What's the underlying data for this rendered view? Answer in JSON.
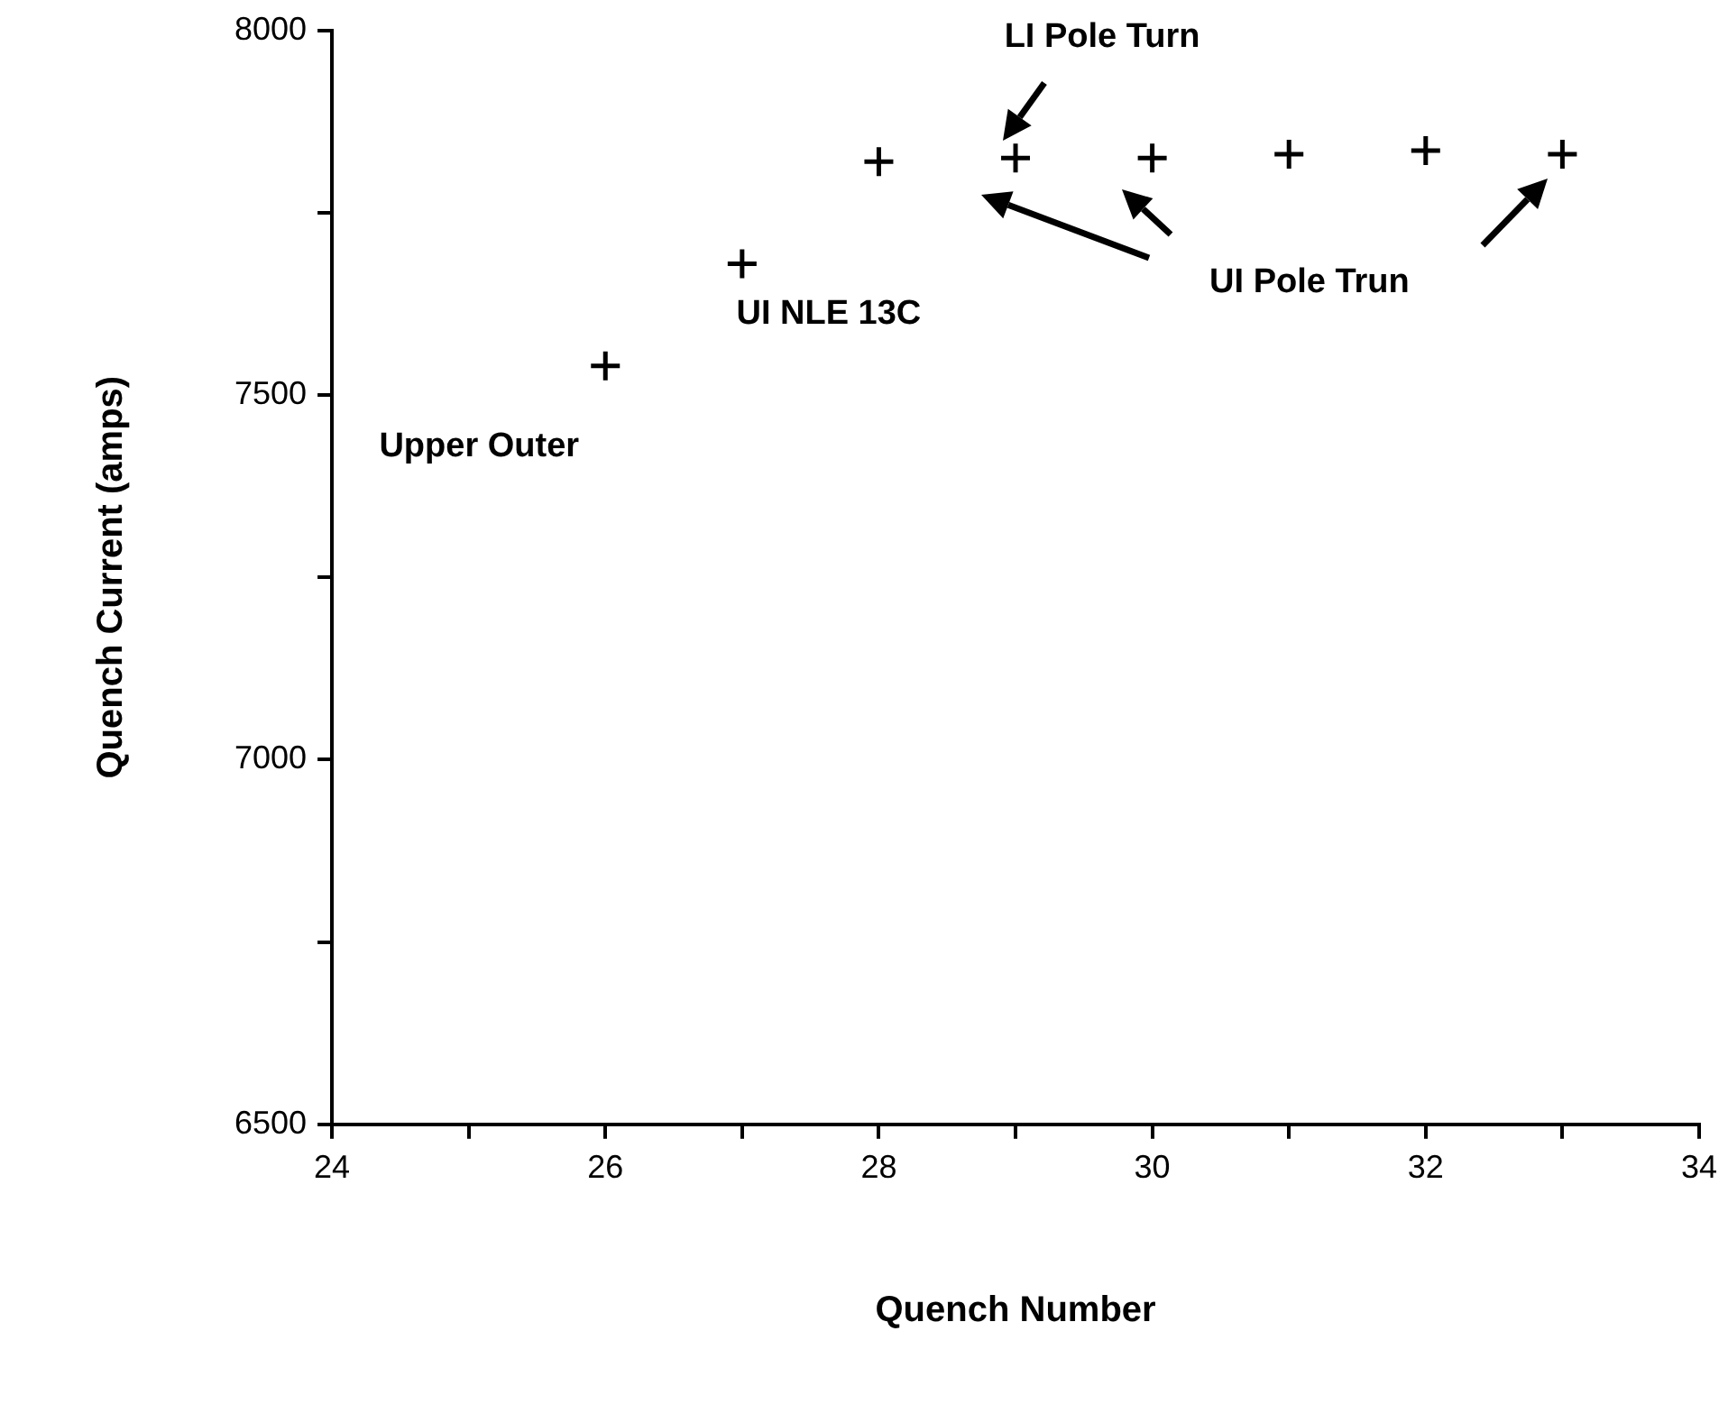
{
  "chart_data": {
    "type": "scatter",
    "xlabel": "Quench Number",
    "ylabel": "Quench Current (amps)",
    "x": [
      26,
      27,
      28,
      29,
      30,
      31,
      32,
      33
    ],
    "values": [
      7540,
      7680,
      7820,
      7825,
      7825,
      7830,
      7835,
      7830
    ],
    "color": "#000000",
    "marker": "cross",
    "grid": false,
    "legend": false,
    "xlim": [
      24,
      34
    ],
    "xticks": [
      24,
      {
        "value": 25,
        "label": null
      },
      26,
      {
        "value": 27,
        "label": null
      },
      28,
      {
        "value": 29,
        "label": null
      },
      30,
      {
        "value": 31,
        "label": null
      },
      32,
      {
        "value": 33,
        "label": null
      },
      34
    ],
    "ylim": [
      6500,
      8000
    ],
    "yticks": [
      6500,
      {
        "value": 6750,
        "label": null
      },
      7000,
      {
        "value": 7250,
        "label": null
      },
      7500,
      {
        "value": 7750,
        "label": null
      },
      8000
    ],
    "annotations": [
      {
        "text": "Upper Outer",
        "x": 26,
        "y": 7540
      },
      {
        "text": "UI NLE 13C",
        "x": 27,
        "y": 7680
      },
      {
        "text": "LI Pole Turn",
        "x": 29,
        "y": 7825
      },
      "UI Pole Trun"
    ]
  }
}
